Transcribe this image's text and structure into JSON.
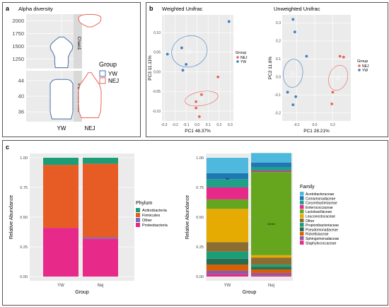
{
  "panels": {
    "a": "a",
    "b": "b",
    "c": "c"
  },
  "alpha": {
    "title": "Alpha diversity",
    "facets": [
      {
        "strip": "Chao1",
        "yticks": [
          1250,
          1500,
          1750,
          2000
        ],
        "ylim": [
          1060,
          2130
        ],
        "violins": [
          {
            "group": "YW",
            "profile": [
              [
                1080,
                0.55
              ],
              [
                1180,
                0.6
              ],
              [
                1290,
                0.6
              ],
              [
                1370,
                0.75
              ],
              [
                1440,
                0.95
              ],
              [
                1500,
                1.0
              ],
              [
                1560,
                0.85
              ],
              [
                1620,
                0.55
              ],
              [
                1680,
                0.2
              ]
            ]
          },
          {
            "group": "NEJ",
            "profile": [
              [
                1880,
                0.2
              ],
              [
                1920,
                0.55
              ],
              [
                1960,
                0.85
              ],
              [
                2000,
                0.95
              ],
              [
                2040,
                1.0
              ],
              [
                2080,
                0.95
              ],
              [
                2110,
                0.7
              ],
              [
                2125,
                0.3
              ]
            ]
          }
        ]
      },
      {
        "strip": "PD whole tree",
        "yticks": [
          36,
          40,
          44
        ],
        "ylim": [
          33.5,
          46.5
        ],
        "violins": [
          {
            "group": "YW",
            "profile": [
              [
                34.2,
                0.85
              ],
              [
                36,
                1.0
              ],
              [
                38,
                1.0
              ],
              [
                40,
                1.0
              ],
              [
                42,
                1.0
              ],
              [
                43.2,
                1.0
              ],
              [
                44,
                0.8
              ],
              [
                44.3,
                0.5
              ]
            ]
          },
          {
            "group": "NEJ",
            "profile": [
              [
                34.5,
                0.75
              ],
              [
                36,
                0.95
              ],
              [
                38,
                1.0
              ],
              [
                40,
                1.0
              ],
              [
                41.5,
                1.0
              ],
              [
                43,
                0.85
              ],
              [
                44.2,
                0.55
              ],
              [
                45.2,
                0.3
              ],
              [
                46,
                0.15
              ]
            ]
          }
        ]
      }
    ],
    "xcats": [
      "YW",
      "NEJ"
    ],
    "legend": {
      "title": "Group",
      "items": [
        {
          "label": "YW",
          "color": "#4a6fa5"
        },
        {
          "label": "NEJ",
          "color": "#e8665c"
        }
      ]
    }
  },
  "pcoa": [
    {
      "title": "Weighted Unifrac",
      "xlabel": "PC1 48.37%",
      "ylabel": "PC3 11.11%",
      "xlim": [
        -0.32,
        0.33
      ],
      "ylim": [
        -0.125,
        0.145
      ],
      "xticks": [
        "-0.3",
        "-0.2",
        "-0.1",
        "0.0",
        "0.1",
        "0.2",
        "0.3"
      ],
      "xtickv": [
        -0.3,
        -0.2,
        -0.1,
        0,
        0.1,
        0.2,
        0.3
      ],
      "yticks": [
        "0.10",
        "0.05",
        "0.00",
        "-0.05",
        "-0.10"
      ],
      "ytickv": [
        0.1,
        0.05,
        0,
        -0.05,
        -0.1
      ],
      "points": [
        {
          "g": "YW",
          "x": 0.29,
          "y": 0.128
        },
        {
          "g": "YW",
          "x": -0.14,
          "y": 0.061
        },
        {
          "g": "YW",
          "x": -0.27,
          "y": 0.045
        },
        {
          "g": "YW",
          "x": -0.1,
          "y": 0.019
        },
        {
          "g": "YW",
          "x": -0.13,
          "y": 0.004
        },
        {
          "g": "NEJ",
          "x": 0.19,
          "y": -0.013
        },
        {
          "g": "NEJ",
          "x": 0.04,
          "y": -0.058
        },
        {
          "g": "NEJ",
          "x": -0.01,
          "y": -0.076
        },
        {
          "g": "NEJ",
          "x": -0.01,
          "y": -0.092
        },
        {
          "g": "NEJ",
          "x": 0.02,
          "y": -0.114
        }
      ],
      "ellipses": [
        {
          "g": "YW",
          "cx": -0.07,
          "cy": 0.052,
          "rx": 0.25,
          "ry": 0.05,
          "rot": -18
        },
        {
          "g": "NEJ",
          "cx": 0.04,
          "cy": -0.068,
          "rx": 0.05,
          "ry": 0.056,
          "rot": -10
        }
      ],
      "legend": {
        "title": "Group",
        "items": [
          {
            "label": "NEJ",
            "color": "#e8665c"
          },
          {
            "label": "YW",
            "color": "#3b7fc4"
          }
        ]
      }
    },
    {
      "title": "Unweighted Unifrac",
      "xlabel": "PC1 28.21%",
      "ylabel": "PC2 11.6%",
      "xlim": [
        -0.36,
        0.4
      ],
      "ylim": [
        -0.245,
        0.345
      ],
      "xticks": [
        "-0.2",
        "0.0",
        "0.2"
      ],
      "xtickv": [
        -0.2,
        0,
        0.2
      ],
      "yticks": [
        "0.3",
        "0.2",
        "0.1",
        "0.0",
        "-0.1",
        "-0.2"
      ],
      "ytickv": [
        0.3,
        0.2,
        0.1,
        0,
        -0.1,
        -0.2
      ],
      "points": [
        {
          "g": "YW",
          "x": -0.24,
          "y": 0.32
        },
        {
          "g": "YW",
          "x": -0.22,
          "y": 0.25
        },
        {
          "g": "YW",
          "x": -0.09,
          "y": 0.115
        },
        {
          "g": "YW",
          "x": -0.3,
          "y": -0.085
        },
        {
          "g": "YW",
          "x": -0.21,
          "y": -0.11
        },
        {
          "g": "YW",
          "x": -0.24,
          "y": -0.155
        },
        {
          "g": "NEJ",
          "x": 0.28,
          "y": 0.115
        },
        {
          "g": "NEJ",
          "x": 0.32,
          "y": 0.11
        },
        {
          "g": "NEJ",
          "x": 0.2,
          "y": -0.085
        },
        {
          "g": "NEJ",
          "x": 0.19,
          "y": -0.15
        }
      ],
      "ellipses": [
        {
          "g": "YW",
          "cx": -0.24,
          "cy": 0.02,
          "rx": 0.22,
          "ry": 0.045,
          "rot": -84
        },
        {
          "g": "NEJ",
          "cx": 0.26,
          "cy": -0.005,
          "rx": 0.19,
          "ry": 0.04,
          "rot": -72
        }
      ],
      "legend": {
        "title": "Group",
        "items": [
          {
            "label": "NEJ",
            "color": "#e8665c"
          },
          {
            "label": "YW",
            "color": "#3b7fc4"
          }
        ]
      }
    }
  ],
  "chart_data": [
    {
      "type": "violin",
      "title": "Alpha diversity",
      "facets": [
        "Chao1",
        "PD whole tree"
      ],
      "groups": [
        "YW",
        "NEJ"
      ]
    },
    {
      "type": "scatter",
      "title": "Weighted Unifrac",
      "xlabel": "PC1 48.37%",
      "ylabel": "PC3 11.11%"
    },
    {
      "type": "scatter",
      "title": "Unweighted Unifrac",
      "xlabel": "PC1 28.21%",
      "ylabel": "PC2 11.6%"
    },
    {
      "type": "bar",
      "stacked": true,
      "xlabel": "Group",
      "ylabel": "Relative Abundance",
      "categories": [
        "YW",
        "Nej"
      ],
      "legend_title": "Phylum",
      "series": [
        {
          "name": "Proteobacteria",
          "color": "#e7298a",
          "values": [
            0.41,
            0.32
          ]
        },
        {
          "name": "Other",
          "color": "#7570b3",
          "values": [
            0.0,
            0.01
          ]
        },
        {
          "name": "Firmicutes",
          "color": "#e65c24",
          "values": [
            0.53,
            0.62
          ]
        },
        {
          "name": "Actinobacteria",
          "color": "#1b9e77",
          "values": [
            0.06,
            0.05
          ]
        }
      ],
      "ylim": [
        0,
        1
      ],
      "yticks": [
        "0.00",
        "0.25",
        "0.50",
        "0.75",
        "1.00"
      ]
    },
    {
      "type": "bar",
      "stacked": true,
      "xlabel": "Group",
      "ylabel": "Relative Abundance",
      "categories": [
        "YW",
        "Nej"
      ],
      "legend_title": "Family",
      "series": [
        {
          "name": "Staphylococcaceae",
          "color": "#e7298a",
          "values": [
            0.02,
            0.01
          ]
        },
        {
          "name": "Sphingomonadaceae",
          "color": "#8f5aa3",
          "values": [
            0.03,
            0.02
          ]
        },
        {
          "name": "Rickettsiaceae",
          "color": "#d95f02",
          "values": [
            0.05,
            0.03
          ]
        },
        {
          "name": "Pseudomonadaceae",
          "color": "#2a6b4f",
          "values": [
            0.05,
            0.02
          ]
        },
        {
          "name": "Propionibacteriaceae",
          "color": "#1b9e77",
          "values": [
            0.06,
            0.02
          ]
        },
        {
          "name": "Other",
          "color": "#8c6d31",
          "values": [
            0.08,
            0.06
          ]
        },
        {
          "name": "Leuconostocaceae",
          "color": "#e6ab02",
          "values": [
            0.28,
            0.02
          ]
        },
        {
          "name": "Lactobacillaceae",
          "color": "#66a61e",
          "values": [
            0.08,
            0.7
          ]
        },
        {
          "name": "Enterococcaceae",
          "color": "#e7298a",
          "values": [
            0.1,
            0.01
          ]
        },
        {
          "name": "Corynebacteriaceae",
          "color": "#1fa188",
          "values": [
            0.07,
            0.03
          ]
        },
        {
          "name": "Comamonadaceae",
          "color": "#1f78b4",
          "values": [
            0.05,
            0.04
          ]
        },
        {
          "name": "Acetobacteraceae",
          "color": "#4eb9dc",
          "values": [
            0.13,
            0.08
          ]
        }
      ],
      "annotations": [
        {
          "category": "YW",
          "text": "**"
        },
        {
          "category": "Nej",
          "text": "****"
        }
      ],
      "ylim": [
        0,
        1
      ],
      "yticks": [
        "0.00",
        "0.25",
        "0.50",
        "0.75",
        "1.00"
      ]
    }
  ],
  "families_legend": [
    "Acetobacteraceae",
    "Comamonadaceae",
    "Corynebacteriaceae",
    "Enterococcaceae",
    "Lactobacillaceae",
    "Leuconostocaceae",
    "Other",
    "Propionibacteriaceae",
    "Pseudomonadaceae",
    "Rickettsiaceae",
    "Sphingomonadaceae",
    "Staphylococcaceae"
  ],
  "family_legend_colors": [
    "#4eb9dc",
    "#1f78b4",
    "#1fa188",
    "#e7298a",
    "#66a61e",
    "#e6ab02",
    "#8c6d31",
    "#1b9e77",
    "#2a6b4f",
    "#d95f02",
    "#8f5aa3",
    "#e7298a"
  ],
  "phylum_legend": [
    "Actinobacteria",
    "Firmicutes",
    "Other",
    "Proteobacteria"
  ],
  "phylum_legend_colors": [
    "#1b9e77",
    "#e65c24",
    "#7570b3",
    "#e7298a"
  ]
}
